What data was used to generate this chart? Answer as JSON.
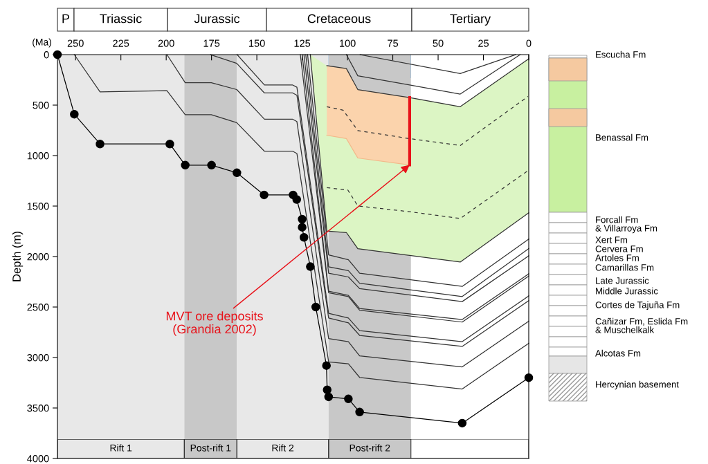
{
  "chart_data": {
    "type": "line",
    "xlabel": "(Ma)",
    "ylabel": "Depth (m)",
    "xlim": [
      260,
      0
    ],
    "xticks": [
      250,
      225,
      200,
      175,
      150,
      125,
      100,
      75,
      50,
      25,
      0
    ],
    "ylim": [
      4000,
      0
    ],
    "yticks": [
      0,
      500,
      1000,
      1500,
      2000,
      2500,
      3000,
      3500,
      4000
    ],
    "grid": false,
    "bands": [
      {
        "axis": "x",
        "from": 111,
        "to": 65,
        "color": "#1e88f0"
      },
      {
        "axis": "x",
        "from": 260,
        "to": 190,
        "label": "Rift 1",
        "color": "#e8e8e8"
      },
      {
        "axis": "x",
        "from": 190,
        "to": 161,
        "label": "Post-rift 1",
        "color": "#c8c8c8"
      },
      {
        "axis": "x",
        "from": 161,
        "to": 110.4,
        "label": "Rift 2",
        "color": "#e8e8e8"
      },
      {
        "axis": "x",
        "from": 110.4,
        "to": 65,
        "label": "Post-rift 2",
        "color": "#c8c8c8"
      }
    ],
    "series": [
      {
        "type": "line",
        "line_style": "dashed",
        "color": "#333333",
        "x": [
          111.4,
          102.4,
          94.3,
          65.7,
          37.8,
          0.4
        ],
        "values": [
          516,
          550,
          753,
          832,
          900,
          414
        ]
      },
      {
        "type": "line",
        "line_style": "dashed",
        "color": "#333333",
        "x": [
          111.4,
          99.8,
          94.3,
          65.7,
          37.8,
          0.4
        ],
        "values": [
          1318,
          1341,
          1499,
          1556,
          1623,
          1149
        ]
      },
      {
        "type": "line",
        "color": "#333333",
        "x": [
          93.0,
          37.8,
          7.3
        ],
        "values": [
          0,
          188,
          0
        ]
      },
      {
        "type": "line",
        "color": "#333333",
        "x": [
          100.6,
          94.3,
          65.7,
          37.8,
          4.8
        ],
        "values": [
          0,
          210,
          301,
          391,
          0
        ]
      },
      {
        "type": "line",
        "color": "#333333",
        "x": [
          111.4,
          100.6,
          94.3,
          65.7,
          37.8,
          0
        ],
        "values": [
          109,
          138,
          346,
          425,
          516,
          41
        ]
      },
      {
        "type": "line",
        "color": "#333333",
        "x": [
          120.5,
          111.4,
          100.6,
          94.3,
          37.8,
          0
        ],
        "values": [
          0,
          1748,
          1762,
          1922,
          2054,
          1567
        ]
      },
      {
        "type": "line",
        "color": "#f2b98a",
        "x": [
          111.4,
          100.6,
          94.3,
          65.7
        ],
        "values": [
          798,
          832,
          1024,
          1092
        ]
      },
      {
        "type": "line",
        "color": "#333333",
        "x": [
          122,
          110.4,
          99.5,
          93.3,
          36.7,
          0
        ],
        "values": [
          0,
          1984,
          2031,
          2165,
          2296,
          1827
        ]
      },
      {
        "type": "line",
        "color": "#333333",
        "x": [
          123,
          110.4,
          99.5,
          93.3,
          36.7,
          0
        ],
        "values": [
          0,
          2102,
          2140,
          2265,
          2396,
          1921
        ]
      },
      {
        "type": "line",
        "color": "#333333",
        "x": [
          124,
          110.4,
          99.5,
          93.3,
          36.7,
          0
        ],
        "values": [
          0,
          2165,
          2202,
          2318,
          2446,
          1993
        ]
      },
      {
        "type": "line",
        "color": "#333333",
        "x": [
          125,
          110.4,
          99.5,
          93.3,
          36.7,
          0
        ],
        "values": [
          0,
          2343,
          2384,
          2515,
          2624,
          2171
        ]
      },
      {
        "type": "line",
        "color": "#333333",
        "x": [
          126,
          110.4,
          99.5,
          93.3,
          36.7,
          0
        ],
        "values": [
          0,
          2359,
          2396,
          2531,
          2649,
          2193
        ]
      },
      {
        "type": "line",
        "color": "#333333",
        "x": [
          160.9,
          145.8,
          130.2,
          127.9,
          110.4,
          99.5,
          93.3,
          36.7,
          0
        ],
        "values": [
          0,
          301,
          301,
          323,
          2562,
          2609,
          2734,
          2843,
          2390
        ]
      },
      {
        "type": "line",
        "color": "#333333",
        "x": [
          175.5,
          161.1,
          145.8,
          130.2,
          127.9,
          110.4,
          99.5,
          93.3,
          36.7,
          0
        ],
        "values": [
          0,
          86,
          380,
          380,
          402,
          2609,
          2656,
          2781,
          2890,
          2437
        ]
      },
      {
        "type": "line",
        "color": "#333333",
        "x": [
          199.6,
          189.5,
          175.1,
          161.1,
          145.8,
          130.2,
          127.9,
          110.4,
          99.5,
          93.3,
          36.7,
          0
        ],
        "values": [
          0,
          278,
          278,
          346,
          640,
          640,
          663,
          2812,
          2843,
          2984,
          3093,
          2640
        ]
      },
      {
        "type": "line",
        "color": "#333333",
        "x": [
          250.7,
          236.5,
          199.6,
          189.5,
          175.1,
          161.1,
          145.8,
          130.2,
          127.9,
          110.4,
          99.5,
          93.3,
          36.7,
          0
        ],
        "values": [
          0,
          369,
          357,
          595,
          595,
          674,
          957,
          957,
          979,
          3043,
          3062,
          3197,
          3312,
          2859
        ]
      },
      {
        "type": "line",
        "color": "#e8121a",
        "x": [
          65.7,
          65.7
        ],
        "values": [
          425,
          1092
        ]
      },
      {
        "marker": "circle",
        "color": "#000000",
        "x": [
          260,
          250.7,
          236.5,
          198,
          189.5,
          175,
          161,
          146,
          130,
          128,
          125,
          125,
          124,
          120.5,
          117.5,
          111.6,
          111.2,
          110.4,
          99.5,
          93.3,
          36.7,
          0
        ],
        "values": [
          0,
          590,
          885,
          885,
          1095,
          1095,
          1170,
          1390,
          1390,
          1435,
          1630,
          1710,
          1810,
          2100,
          2500,
          3080,
          3320,
          3390,
          3410,
          3540,
          3650,
          3200
        ]
      }
    ],
    "annotations": [
      {
        "text": "MVT ore deposits\n(Grandia 2002)",
        "x": 65.7,
        "y": 1092
      },
      "P",
      "Triassic",
      "Jurassic",
      "Cretaceous",
      "Tertiary",
      "Escucha Fm",
      "Benassal Fm",
      "Forcall Fm\n& Villarroya Fm",
      "Xert Fm",
      "Cervera Fm",
      "Artoles Fm",
      "Camarillas Fm",
      "Late Jurassic",
      "Middle Jurassic",
      "Cortes de Tajuña Fm",
      "Cañizar Fm, Eslida Fm\n& Muschelkalk",
      "Alcotas Fm",
      "Hercynian basement"
    ]
  }
}
